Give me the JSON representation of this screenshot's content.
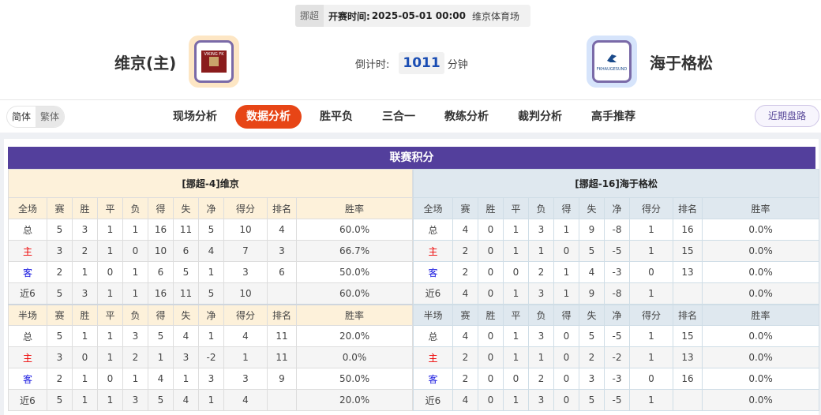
{
  "match": {
    "league": "挪超",
    "time_label": "开赛时间:",
    "time": "2025-05-01 00:00",
    "venue": "维京体育场"
  },
  "home": {
    "name": "维京(主)",
    "logo_text": "VIKING FK",
    "logo_bg": "#fde6c4"
  },
  "away": {
    "name": "海于格松",
    "logo_text": "FKHAUGESUND",
    "logo_bg": "#d6e4fb"
  },
  "countdown": {
    "label": "倒计时:",
    "value": "1011",
    "unit": "分钟"
  },
  "lang": {
    "simplified": "简体",
    "traditional": "繁体"
  },
  "tabs": [
    {
      "label": "现场分析"
    },
    {
      "label": "数据分析",
      "active": true
    },
    {
      "label": "胜平负"
    },
    {
      "label": "三合一"
    },
    {
      "label": "教练分析"
    },
    {
      "label": "裁判分析"
    },
    {
      "label": "高手推荐"
    }
  ],
  "recent_button": "近期盘路",
  "section_title": "联赛积分",
  "colors": {
    "accent": "#e74516",
    "title_bar": "#533f9c",
    "home_label": "#ee0000",
    "away_label": "#1a1ae0"
  },
  "tables": [
    {
      "title": "[挪超-4]维京",
      "full_header": [
        "全场",
        "赛",
        "胜",
        "平",
        "负",
        "得",
        "失",
        "净",
        "得分",
        "排名",
        "胜率"
      ],
      "full_rows": [
        [
          "总",
          "5",
          "3",
          "1",
          "1",
          "16",
          "11",
          "5",
          "10",
          "4",
          "60.0%"
        ],
        [
          "主",
          "3",
          "2",
          "1",
          "0",
          "10",
          "6",
          "4",
          "7",
          "3",
          "66.7%"
        ],
        [
          "客",
          "2",
          "1",
          "0",
          "1",
          "6",
          "5",
          "1",
          "3",
          "6",
          "50.0%"
        ],
        [
          "近6",
          "5",
          "3",
          "1",
          "1",
          "16",
          "11",
          "5",
          "10",
          "",
          "60.0%"
        ]
      ],
      "half_header": [
        "半场",
        "赛",
        "胜",
        "平",
        "负",
        "得",
        "失",
        "净",
        "得分",
        "排名",
        "胜率"
      ],
      "half_rows": [
        [
          "总",
          "5",
          "1",
          "1",
          "3",
          "5",
          "4",
          "1",
          "4",
          "11",
          "20.0%"
        ],
        [
          "主",
          "3",
          "0",
          "1",
          "2",
          "1",
          "3",
          "-2",
          "1",
          "11",
          "0.0%"
        ],
        [
          "客",
          "2",
          "1",
          "0",
          "1",
          "4",
          "1",
          "3",
          "3",
          "9",
          "50.0%"
        ],
        [
          "近6",
          "5",
          "1",
          "1",
          "3",
          "5",
          "4",
          "1",
          "4",
          "",
          "20.0%"
        ]
      ]
    },
    {
      "title": "[挪超-16]海于格松",
      "full_header": [
        "全场",
        "赛",
        "胜",
        "平",
        "负",
        "得",
        "失",
        "净",
        "得分",
        "排名",
        "胜率"
      ],
      "full_rows": [
        [
          "总",
          "4",
          "0",
          "1",
          "3",
          "1",
          "9",
          "-8",
          "1",
          "16",
          "0.0%"
        ],
        [
          "主",
          "2",
          "0",
          "1",
          "1",
          "0",
          "5",
          "-5",
          "1",
          "15",
          "0.0%"
        ],
        [
          "客",
          "2",
          "0",
          "0",
          "2",
          "1",
          "4",
          "-3",
          "0",
          "13",
          "0.0%"
        ],
        [
          "近6",
          "4",
          "0",
          "1",
          "3",
          "1",
          "9",
          "-8",
          "1",
          "",
          "0.0%"
        ]
      ],
      "half_header": [
        "半场",
        "赛",
        "胜",
        "平",
        "负",
        "得",
        "失",
        "净",
        "得分",
        "排名",
        "胜率"
      ],
      "half_rows": [
        [
          "总",
          "4",
          "0",
          "1",
          "3",
          "0",
          "5",
          "-5",
          "1",
          "15",
          "0.0%"
        ],
        [
          "主",
          "2",
          "0",
          "1",
          "1",
          "0",
          "2",
          "-2",
          "1",
          "13",
          "0.0%"
        ],
        [
          "客",
          "2",
          "0",
          "0",
          "2",
          "0",
          "3",
          "-3",
          "0",
          "16",
          "0.0%"
        ],
        [
          "近6",
          "4",
          "0",
          "1",
          "3",
          "0",
          "5",
          "-5",
          "1",
          "",
          "0.0%"
        ]
      ]
    }
  ]
}
